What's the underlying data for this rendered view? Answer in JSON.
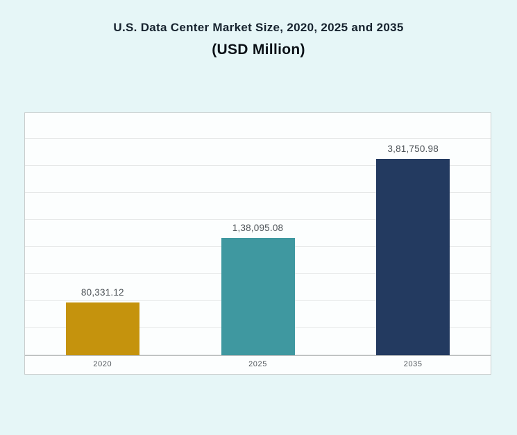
{
  "title": {
    "line1": "U.S. Data Center Market Size, 2020, 2025 and 2035",
    "line2": "(USD Million)"
  },
  "chart_data": {
    "type": "bar",
    "title": "U.S. Data Center Market Size, 2020, 2025 and 2035 (USD Million)",
    "unit": "USD Million",
    "categories": [
      "2020",
      "2025",
      "2035"
    ],
    "values": [
      80331.12,
      138095.08,
      381750.98
    ],
    "value_labels": [
      "80,331.12",
      "1,38,095.08",
      "3,81,750.98"
    ],
    "bar_colors": [
      "#c5930d",
      "#3f98a0",
      "#233a60"
    ],
    "grid": true,
    "legend": "none",
    "ylim": [
      0,
      400000
    ],
    "bar_height_pct": [
      21.7,
      48.5,
      81
    ]
  },
  "colors": {
    "background": "#e6f6f7",
    "panel": "#fcfefe",
    "gridline": "#e6e8e8",
    "bar_2020": "#c5930d",
    "bar_2025": "#3f98a0",
    "bar_2035": "#233a60"
  }
}
